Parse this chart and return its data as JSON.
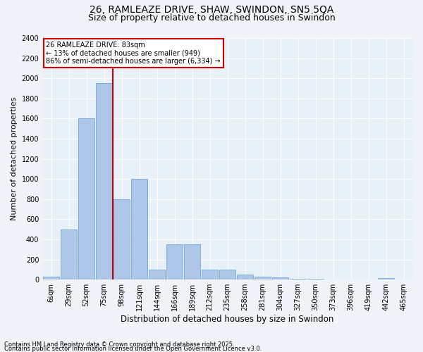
{
  "title1": "26, RAMLEAZE DRIVE, SHAW, SWINDON, SN5 5QA",
  "title2": "Size of property relative to detached houses in Swindon",
  "xlabel": "Distribution of detached houses by size in Swindon",
  "ylabel": "Number of detached properties",
  "categories": [
    "6sqm",
    "29sqm",
    "52sqm",
    "75sqm",
    "98sqm",
    "121sqm",
    "144sqm",
    "166sqm",
    "189sqm",
    "212sqm",
    "235sqm",
    "258sqm",
    "281sqm",
    "304sqm",
    "327sqm",
    "350sqm",
    "373sqm",
    "396sqm",
    "419sqm",
    "442sqm",
    "465sqm"
  ],
  "values": [
    30,
    500,
    1600,
    1950,
    800,
    1000,
    100,
    350,
    350,
    100,
    100,
    50,
    30,
    20,
    10,
    5,
    0,
    0,
    0,
    15,
    0
  ],
  "bar_color": "#aec6e8",
  "bar_edge_color": "#5a9fd4",
  "vline_color": "#cc0000",
  "vline_x": 3.5,
  "annotation_title": "26 RAMLEAZE DRIVE: 83sqm",
  "annotation_line1": "← 13% of detached houses are smaller (949)",
  "annotation_line2": "86% of semi-detached houses are larger (6,334) →",
  "annotation_box_color": "#cc0000",
  "ylim": [
    0,
    2400
  ],
  "yticks": [
    0,
    200,
    400,
    600,
    800,
    1000,
    1200,
    1400,
    1600,
    1800,
    2000,
    2200,
    2400
  ],
  "footnote1": "Contains HM Land Registry data © Crown copyright and database right 2025.",
  "footnote2": "Contains public sector information licensed under the Open Government Licence v3.0.",
  "bg_color": "#e8f0f8",
  "grid_color": "#ffffff",
  "title_fontsize": 10,
  "subtitle_fontsize": 9,
  "tick_fontsize": 7,
  "ylabel_fontsize": 8,
  "xlabel_fontsize": 8.5,
  "footnote_fontsize": 6
}
